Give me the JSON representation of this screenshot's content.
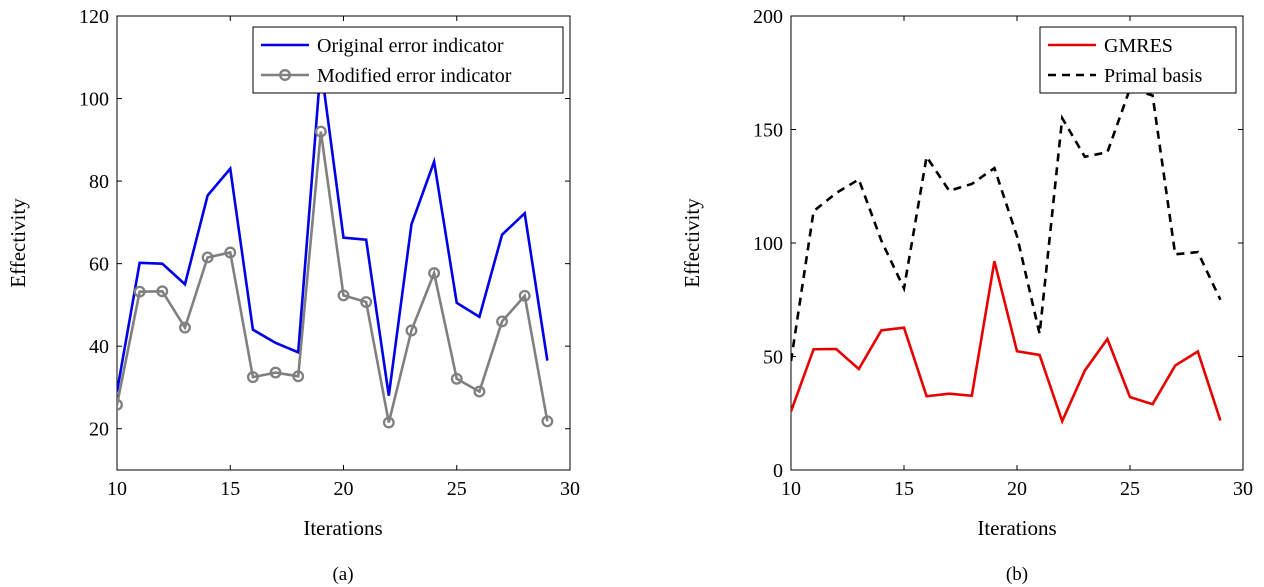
{
  "chart_data": [
    {
      "type": "line",
      "caption": "(a)",
      "xlabel": "Iterations",
      "ylabel": "Effectivity",
      "xlim": [
        10,
        30
      ],
      "ylim": [
        10,
        120
      ],
      "xticks": [
        10,
        15,
        20,
        25,
        30
      ],
      "yticks": [
        20,
        40,
        60,
        80,
        100,
        120
      ],
      "grid": false,
      "legend_position": "top-right",
      "x": [
        10,
        11,
        12,
        13,
        14,
        15,
        16,
        17,
        18,
        19,
        20,
        21,
        22,
        23,
        24,
        25,
        26,
        27,
        28,
        29
      ],
      "series": [
        {
          "name": "Original error indicator",
          "color": "#0000e6",
          "style": "solid",
          "marker": "none",
          "values": [
            29,
            60.2,
            60,
            55,
            76.5,
            83,
            44,
            40.8,
            38.5,
            108,
            66.3,
            65.8,
            28,
            69.5,
            84.7,
            50.5,
            47.1,
            67,
            72.2,
            36.5
          ]
        },
        {
          "name": "Modified error indicator",
          "color": "#808080",
          "style": "solid",
          "marker": "circle",
          "values": [
            25.8,
            53.2,
            53.3,
            44.5,
            61.5,
            62.7,
            32.5,
            33.6,
            32.7,
            92,
            52.3,
            50.7,
            21.5,
            43.8,
            57.7,
            32.1,
            29,
            46,
            52.2,
            21.8
          ]
        }
      ]
    },
    {
      "type": "line",
      "caption": "(b)",
      "xlabel": "Iterations",
      "ylabel": "Effectivity",
      "xlim": [
        10,
        30
      ],
      "ylim": [
        0,
        200
      ],
      "xticks": [
        10,
        15,
        20,
        25,
        30
      ],
      "yticks": [
        0,
        50,
        100,
        150,
        200
      ],
      "grid": false,
      "legend_position": "top-right",
      "x": [
        10,
        11,
        12,
        13,
        14,
        15,
        16,
        17,
        18,
        19,
        20,
        21,
        22,
        23,
        24,
        25,
        26,
        27,
        28,
        29
      ],
      "series": [
        {
          "name": "GMRES",
          "color": "#e60000",
          "style": "solid",
          "marker": "none",
          "values": [
            25.8,
            53.2,
            53.3,
            44.5,
            61.5,
            62.7,
            32.5,
            33.6,
            32.7,
            92,
            52.3,
            50.7,
            21.5,
            43.8,
            57.7,
            32.1,
            29,
            46,
            52.2,
            21.8
          ]
        },
        {
          "name": "Primal basis",
          "color": "#000000",
          "style": "dashed",
          "marker": "none",
          "values": [
            48,
            114,
            122,
            128,
            101,
            80,
            138,
            123,
            126,
            133,
            103,
            60,
            155,
            138,
            140,
            168,
            165,
            95,
            96,
            75
          ]
        }
      ]
    }
  ]
}
